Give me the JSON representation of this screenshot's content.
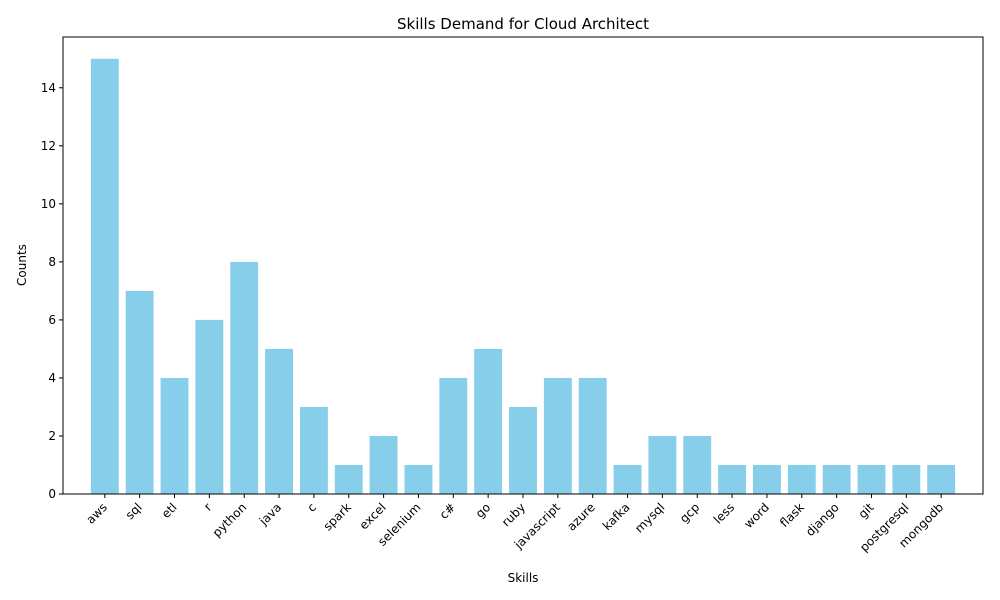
{
  "chart_data": {
    "type": "bar",
    "title": "Skills Demand for Cloud Architect",
    "xlabel": "Skills",
    "ylabel": "Counts",
    "categories": [
      "aws",
      "sql",
      "etl",
      "r",
      "python",
      "java",
      "c",
      "spark",
      "excel",
      "selenium",
      "c#",
      "go",
      "ruby",
      "javascript",
      "azure",
      "kafka",
      "mysql",
      "gcp",
      "less",
      "word",
      "flask",
      "django",
      "git",
      "postgresql",
      "mongodb"
    ],
    "values": [
      15,
      7,
      4,
      6,
      8,
      5,
      3,
      1,
      2,
      1,
      4,
      5,
      3,
      4,
      4,
      1,
      2,
      2,
      1,
      1,
      1,
      1,
      1,
      1,
      1
    ],
    "ylim": [
      0,
      15.75
    ],
    "yticks": [
      0,
      2,
      4,
      6,
      8,
      10,
      12,
      14
    ],
    "bar_color": "#87ceeb",
    "grid": false,
    "legend": "none"
  }
}
